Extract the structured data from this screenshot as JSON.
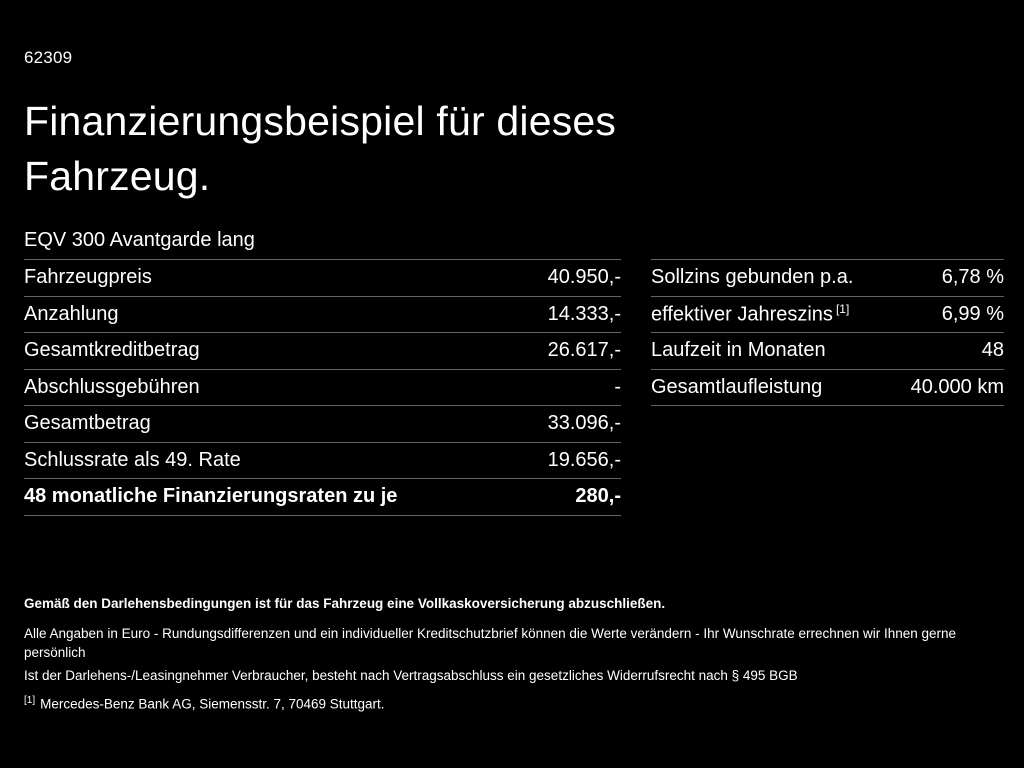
{
  "page": {
    "doc_id": "62309",
    "title": "Finanzierungsbeispiel für dieses Fahrzeug.",
    "subtitle": "EQV 300 Avantgarde lang"
  },
  "left_table": {
    "rows": [
      {
        "label": "Fahrzeugpreis",
        "value": "40.950,-"
      },
      {
        "label": "Anzahlung",
        "value": "14.333,-"
      },
      {
        "label": "Gesamtkreditbetrag",
        "value": "26.617,-"
      },
      {
        "label": "Abschlussgebühren",
        "value": "-"
      },
      {
        "label": "Gesamtbetrag",
        "value": "33.096,-"
      },
      {
        "label": "Schlussrate als 49. Rate",
        "value": "19.656,-"
      },
      {
        "label": "48 monatliche Finanzierungsraten zu je",
        "value": "280,-"
      }
    ]
  },
  "right_table": {
    "rows": [
      {
        "label": "Sollzins gebunden p.a.",
        "value": "6,78 %"
      },
      {
        "label": "effektiver Jahreszins",
        "label_sup": "[1]",
        "value": "6,99 %"
      },
      {
        "label": "Laufzeit in Monaten",
        "value": "48"
      },
      {
        "label": "Gesamtlaufleistung",
        "value": "40.000 km"
      }
    ]
  },
  "footer": {
    "bold_note": "Gemäß den Darlehensbedingungen ist für das Fahrzeug eine Vollkaskoversicherung abzuschließen.",
    "note2": "Alle Angaben in Euro - Rundungsdifferenzen und ein individueller Kreditschutzbrief können die Werte verändern - Ihr Wunschrate errechnen wir Ihnen gerne persönlich",
    "note3": "Ist der Darlehens-/Leasingnehmer Verbraucher, besteht nach Vertragsabschluss ein gesetzliches Widerrufsrecht nach § 495 BGB",
    "footnote_marker": "[1]",
    "footnote_text": "Mercedes-Benz Bank AG, Siemensstr. 7, 70469 Stuttgart."
  },
  "colors": {
    "background": "#000000",
    "text": "#ffffff",
    "divider": "#636363"
  }
}
